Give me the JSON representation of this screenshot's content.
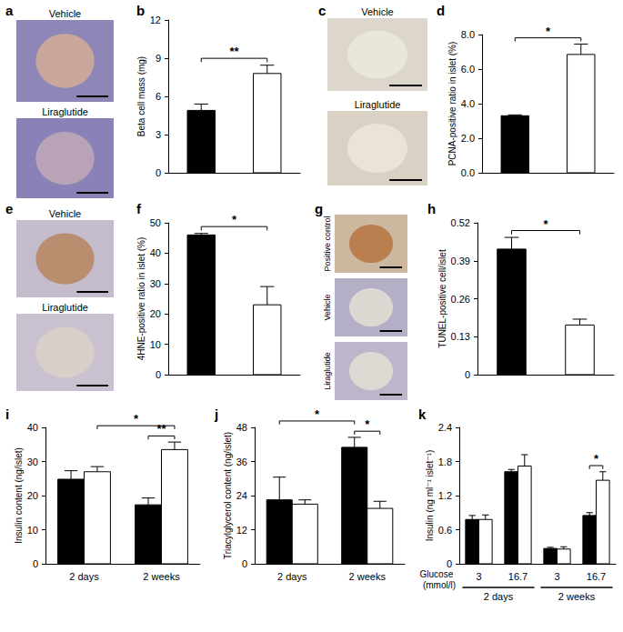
{
  "chart_data": [
    {
      "panel": "b",
      "type": "bar",
      "y_label": "Beta cell mass (mg)",
      "grid": false,
      "categories": [
        null,
        null
      ],
      "values": [
        4.9,
        7.8
      ],
      "errors": [
        0.5,
        0.65
      ],
      "colors": [
        "#000000",
        "#ffffff"
      ],
      "ylim": [
        0,
        12
      ],
      "yticks": [
        0,
        3,
        6,
        9,
        12
      ],
      "annotations": [
        {
          "from": 0,
          "to": 1,
          "label": "**"
        }
      ]
    },
    {
      "panel": "d",
      "type": "bar",
      "y_label": "PCNA-positive ratio in islet (%)",
      "grid": false,
      "categories": [
        null,
        null
      ],
      "values": [
        3.3,
        6.85
      ],
      "errors": [
        0.05,
        0.6
      ],
      "colors": [
        "#000000",
        "#ffffff"
      ],
      "ylim": [
        0,
        8
      ],
      "yticks": [
        {
          "value": 0,
          "label": "0.0"
        },
        {
          "value": 2,
          "label": "2.0"
        },
        {
          "value": 4,
          "label": "4.0"
        },
        {
          "value": 6,
          "label": "6.0"
        },
        {
          "value": 8,
          "label": "8.0"
        }
      ],
      "annotations": [
        {
          "from": 0,
          "to": 1,
          "label": "*"
        }
      ]
    },
    {
      "panel": "f",
      "type": "bar",
      "y_label": "4HNE-positive ratio in islet (%)",
      "grid": false,
      "categories": [
        null,
        null
      ],
      "values": [
        46,
        23
      ],
      "errors": [
        0.5,
        6
      ],
      "colors": [
        "#000000",
        "#ffffff"
      ],
      "ylim": [
        0,
        50
      ],
      "yticks": [
        0,
        10,
        20,
        30,
        40,
        50
      ],
      "annotations": [
        {
          "from": 0,
          "to": 1,
          "label": "*"
        }
      ]
    },
    {
      "panel": "h",
      "type": "bar",
      "y_label": "TUNEL-positive cell/islet",
      "grid": false,
      "categories": [
        null,
        null
      ],
      "values": [
        0.43,
        0.17
      ],
      "errors": [
        0.04,
        0.02
      ],
      "colors": [
        "#000000",
        "#ffffff"
      ],
      "ylim": [
        0,
        0.52
      ],
      "yticks": [
        0,
        0.13,
        0.26,
        0.39,
        0.52
      ],
      "annotations": [
        {
          "from": 0,
          "to": 1,
          "label": "*"
        }
      ]
    },
    {
      "panel": "i",
      "type": "bar",
      "y_label": "Insulin content (ng/islet)",
      "grid": false,
      "categories": [
        "2 days",
        "2 weeks"
      ],
      "series": [
        {
          "color": "#000000",
          "values": [
            24.8,
            17.3
          ],
          "errors": [
            2.5,
            2.0
          ]
        },
        {
          "color": "#ffffff",
          "values": [
            27.0,
            33.5
          ],
          "errors": [
            1.5,
            2.2
          ]
        }
      ],
      "ylim": [
        0,
        40
      ],
      "yticks": [
        0,
        10,
        20,
        30,
        40
      ],
      "annotations": [
        {
          "from": [
            0,
            1
          ],
          "to": [
            1,
            1
          ],
          "label": "**"
        },
        {
          "from": [
            1,
            0
          ],
          "to": [
            1,
            1
          ],
          "label": "*"
        }
      ]
    },
    {
      "panel": "j",
      "type": "bar",
      "y_label": "Triacylglycerol content (ng/islet)",
      "grid": false,
      "categories": [
        "2 days",
        "2 weeks"
      ],
      "series": [
        {
          "color": "#000000",
          "values": [
            22.5,
            41.0
          ],
          "errors": [
            8.0,
            3.5
          ]
        },
        {
          "color": "#ffffff",
          "values": [
            21.0,
            19.5
          ],
          "errors": [
            1.5,
            2.5
          ]
        }
      ],
      "ylim": [
        0,
        48
      ],
      "yticks": [
        0,
        12,
        24,
        36,
        48
      ],
      "annotations": [
        {
          "from": [
            0,
            1
          ],
          "to": [
            1,
            1
          ],
          "label": "*"
        },
        {
          "from": [
            0,
            0
          ],
          "to": [
            0,
            1
          ],
          "label": "*"
        }
      ]
    },
    {
      "panel": "k",
      "type": "bar",
      "y_label": "Insulin (ng ml⁻¹ islet⁻¹)",
      "x_label": "Glucose (mmol/l)",
      "grid": false,
      "categories": [
        "3",
        "16.7",
        "3",
        "16.7"
      ],
      "groups": [
        {
          "label": "2 days",
          "categories": [
            0,
            1
          ]
        },
        {
          "label": "2 weeks",
          "categories": [
            2,
            3
          ]
        }
      ],
      "series": [
        {
          "color": "#000000",
          "values": [
            0.78,
            1.62,
            0.27,
            0.85
          ],
          "errors": [
            0.07,
            0.04,
            0.02,
            0.05
          ]
        },
        {
          "color": "#ffffff",
          "values": [
            0.78,
            1.72,
            0.26,
            1.47
          ],
          "errors": [
            0.08,
            0.2,
            0.04,
            0.15
          ]
        }
      ],
      "ylim": [
        0,
        2.4
      ],
      "yticks": [
        0,
        0.6,
        1.2,
        1.8,
        2.4
      ],
      "annotations": [
        {
          "from": [
            0,
            3
          ],
          "to": [
            1,
            3
          ],
          "label": "*"
        }
      ]
    }
  ],
  "image_panels": [
    {
      "panel": "a",
      "labels": [
        "Vehicle",
        "Liraglutide"
      ]
    },
    {
      "panel": "c",
      "labels": [
        "Vehicle",
        "Liraglutide"
      ]
    },
    {
      "panel": "e",
      "labels": [
        "Vehicle",
        "Liraglutide"
      ]
    },
    {
      "panel": "g",
      "labels": [
        "Positive control",
        "Vehicle",
        "Liraglutide"
      ]
    }
  ]
}
